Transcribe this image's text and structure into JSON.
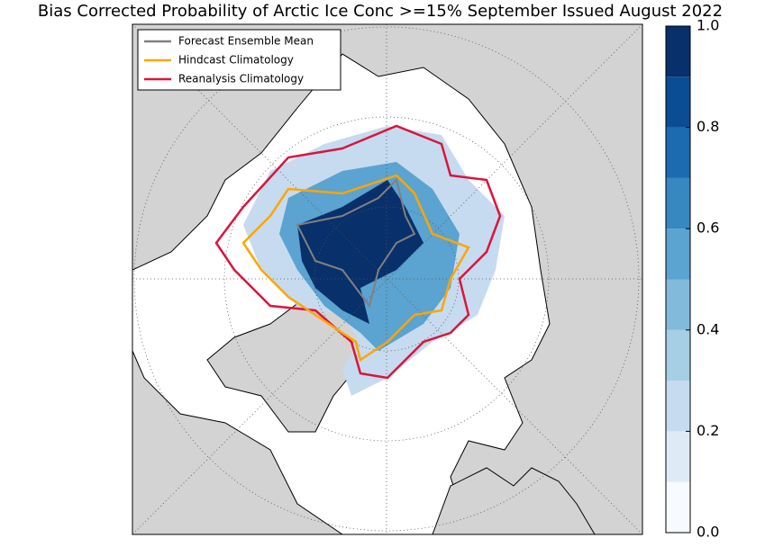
{
  "title": "Bias Corrected Probability of Arctic Ice Conc >=15% September Issued August 2022",
  "legend": [
    {
      "label": "Forecast Ensemble Mean",
      "color": "#808080"
    },
    {
      "label": "Hindcast Climatology",
      "color": "#ffa500"
    },
    {
      "label": "Reanalysis Climatology",
      "color": "#dc143c"
    }
  ],
  "colorbar": {
    "lim": [
      0,
      1
    ],
    "bins": [
      0,
      0.1,
      0.2,
      0.3,
      0.4,
      0.5,
      0.6,
      0.7,
      0.8,
      0.9,
      1.0
    ],
    "colors": [
      "#f7fbff",
      "#deebf7",
      "#c6dbef",
      "#a6cee4",
      "#82badb",
      "#5ba3d0",
      "#3787c0",
      "#1c6aaf",
      "#0b4d94",
      "#08306b"
    ],
    "ticks": [
      {
        "value": 0,
        "label": "0.0"
      },
      {
        "value": 0.2,
        "label": "0.2"
      },
      {
        "value": 0.4,
        "label": "0.4"
      },
      {
        "value": 0.6,
        "label": "0.6"
      },
      {
        "value": 0.8,
        "label": "0.8"
      },
      {
        "value": 1,
        "label": "1.0"
      }
    ]
  }
}
